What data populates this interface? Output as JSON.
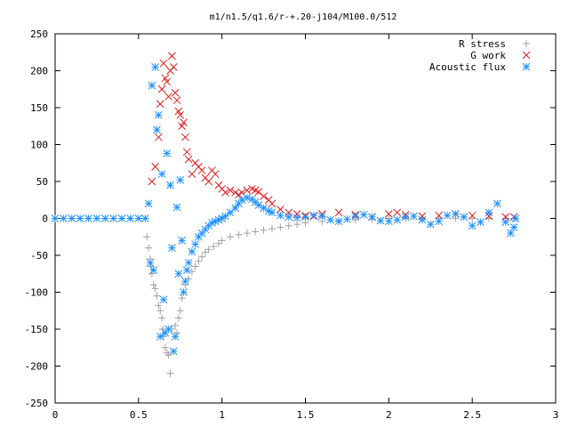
{
  "chart_data": {
    "type": "scatter",
    "title": "m1/n1.5/q1.6/r-+.20-j104/M100.0/512",
    "xlabel": "",
    "ylabel": "",
    "xlim": [
      0,
      3
    ],
    "ylim": [
      -250,
      250
    ],
    "x_ticks": [
      0,
      0.5,
      1,
      1.5,
      2,
      2.5,
      3
    ],
    "x_tick_labels": [
      "0",
      "0.5",
      "1",
      "1.5",
      "2",
      "2.5",
      "3"
    ],
    "y_ticks": [
      -250,
      -200,
      -150,
      -100,
      -50,
      0,
      50,
      100,
      150,
      200,
      250
    ],
    "y_tick_labels": [
      "-250",
      "-200",
      "-150",
      "-100",
      "-50",
      "0",
      "50",
      "100",
      "150",
      "200",
      "250"
    ],
    "grid": false,
    "legend_position": "top-right",
    "series": [
      {
        "name": "R stress",
        "marker": "plus",
        "color": "#a0a0a0",
        "points": [
          [
            0.55,
            -25
          ],
          [
            0.56,
            -40
          ],
          [
            0.57,
            -55
          ],
          [
            0.575,
            -65
          ],
          [
            0.58,
            -75
          ],
          [
            0.59,
            -90
          ],
          [
            0.6,
            -95
          ],
          [
            0.61,
            -105
          ],
          [
            0.62,
            -118
          ],
          [
            0.63,
            -125
          ],
          [
            0.64,
            -135
          ],
          [
            0.645,
            -150
          ],
          [
            0.65,
            -160
          ],
          [
            0.66,
            -175
          ],
          [
            0.67,
            -182
          ],
          [
            0.68,
            -185
          ],
          [
            0.69,
            -210
          ],
          [
            0.7,
            -150
          ],
          [
            0.72,
            -145
          ],
          [
            0.73,
            -155
          ],
          [
            0.74,
            -135
          ],
          [
            0.75,
            -125
          ],
          [
            0.76,
            -108
          ],
          [
            0.77,
            -100
          ],
          [
            0.78,
            -90
          ],
          [
            0.8,
            -82
          ],
          [
            0.82,
            -72
          ],
          [
            0.84,
            -65
          ],
          [
            0.86,
            -58
          ],
          [
            0.88,
            -52
          ],
          [
            0.9,
            -46
          ],
          [
            0.92,
            -42
          ],
          [
            0.95,
            -38
          ],
          [
            0.98,
            -34
          ],
          [
            1.0,
            -30
          ],
          [
            1.05,
            -25
          ],
          [
            1.1,
            -22
          ],
          [
            1.15,
            -20
          ],
          [
            1.2,
            -18
          ],
          [
            1.25,
            -16
          ],
          [
            1.3,
            -14
          ],
          [
            1.35,
            -12
          ],
          [
            1.4,
            -10
          ],
          [
            1.45,
            -8
          ],
          [
            1.5,
            -6
          ],
          [
            1.6,
            -4
          ],
          [
            1.7,
            -3
          ],
          [
            1.8,
            -2
          ],
          [
            1.9,
            -1
          ],
          [
            2.0,
            0
          ],
          [
            2.1,
            0
          ],
          [
            2.2,
            0
          ],
          [
            2.3,
            0
          ],
          [
            2.4,
            0
          ],
          [
            2.5,
            0
          ],
          [
            2.6,
            0
          ],
          [
            2.7,
            0
          ],
          [
            2.75,
            0
          ]
        ]
      },
      {
        "name": "G work",
        "marker": "cross",
        "color": "#e41a1c",
        "points": [
          [
            0.58,
            50
          ],
          [
            0.6,
            70
          ],
          [
            0.62,
            110
          ],
          [
            0.63,
            155
          ],
          [
            0.64,
            175
          ],
          [
            0.65,
            210
          ],
          [
            0.66,
            190
          ],
          [
            0.67,
            185
          ],
          [
            0.68,
            165
          ],
          [
            0.69,
            200
          ],
          [
            0.7,
            220
          ],
          [
            0.71,
            205
          ],
          [
            0.72,
            170
          ],
          [
            0.73,
            160
          ],
          [
            0.74,
            145
          ],
          [
            0.75,
            140
          ],
          [
            0.76,
            125
          ],
          [
            0.77,
            130
          ],
          [
            0.78,
            110
          ],
          [
            0.79,
            90
          ],
          [
            0.8,
            80
          ],
          [
            0.82,
            60
          ],
          [
            0.84,
            75
          ],
          [
            0.86,
            70
          ],
          [
            0.88,
            65
          ],
          [
            0.9,
            55
          ],
          [
            0.92,
            50
          ],
          [
            0.94,
            65
          ],
          [
            0.96,
            60
          ],
          [
            0.98,
            45
          ],
          [
            1.0,
            40
          ],
          [
            1.02,
            35
          ],
          [
            1.05,
            38
          ],
          [
            1.08,
            35
          ],
          [
            1.1,
            32
          ],
          [
            1.12,
            35
          ],
          [
            1.15,
            38
          ],
          [
            1.18,
            40
          ],
          [
            1.2,
            38
          ],
          [
            1.22,
            36
          ],
          [
            1.25,
            30
          ],
          [
            1.28,
            25
          ],
          [
            1.3,
            20
          ],
          [
            1.35,
            12
          ],
          [
            1.4,
            8
          ],
          [
            1.45,
            6
          ],
          [
            1.5,
            4
          ],
          [
            1.55,
            3
          ],
          [
            1.6,
            6
          ],
          [
            1.7,
            8
          ],
          [
            1.8,
            5
          ],
          [
            1.9,
            2
          ],
          [
            2.0,
            6
          ],
          [
            2.05,
            8
          ],
          [
            2.1,
            5
          ],
          [
            2.2,
            3
          ],
          [
            2.3,
            4
          ],
          [
            2.4,
            6
          ],
          [
            2.5,
            4
          ],
          [
            2.6,
            3
          ],
          [
            2.7,
            2
          ],
          [
            2.75,
            2
          ]
        ]
      },
      {
        "name": "Acoustic flux",
        "marker": "star",
        "color": "#1e90ff",
        "points": [
          [
            0.0,
            0
          ],
          [
            0.05,
            0
          ],
          [
            0.1,
            0
          ],
          [
            0.15,
            0
          ],
          [
            0.2,
            0
          ],
          [
            0.25,
            0
          ],
          [
            0.3,
            0
          ],
          [
            0.35,
            0
          ],
          [
            0.4,
            0
          ],
          [
            0.45,
            0
          ],
          [
            0.5,
            0
          ],
          [
            0.54,
            0
          ],
          [
            0.56,
            20
          ],
          [
            0.57,
            -60
          ],
          [
            0.58,
            180
          ],
          [
            0.59,
            -70
          ],
          [
            0.6,
            205
          ],
          [
            0.61,
            120
          ],
          [
            0.62,
            140
          ],
          [
            0.63,
            -160
          ],
          [
            0.64,
            60
          ],
          [
            0.65,
            -110
          ],
          [
            0.66,
            -155
          ],
          [
            0.67,
            88
          ],
          [
            0.68,
            -150
          ],
          [
            0.69,
            45
          ],
          [
            0.7,
            -40
          ],
          [
            0.71,
            -180
          ],
          [
            0.72,
            -160
          ],
          [
            0.73,
            15
          ],
          [
            0.74,
            -75
          ],
          [
            0.75,
            52
          ],
          [
            0.76,
            -30
          ],
          [
            0.77,
            -100
          ],
          [
            0.78,
            -85
          ],
          [
            0.79,
            -70
          ],
          [
            0.8,
            -60
          ],
          [
            0.82,
            -45
          ],
          [
            0.84,
            -35
          ],
          [
            0.86,
            -25
          ],
          [
            0.88,
            -20
          ],
          [
            0.9,
            -15
          ],
          [
            0.92,
            -10
          ],
          [
            0.94,
            -6
          ],
          [
            0.96,
            -4
          ],
          [
            0.98,
            -2
          ],
          [
            1.0,
            0
          ],
          [
            1.02,
            3
          ],
          [
            1.05,
            8
          ],
          [
            1.08,
            14
          ],
          [
            1.1,
            20
          ],
          [
            1.12,
            25
          ],
          [
            1.15,
            28
          ],
          [
            1.18,
            26
          ],
          [
            1.2,
            22
          ],
          [
            1.22,
            18
          ],
          [
            1.25,
            14
          ],
          [
            1.28,
            10
          ],
          [
            1.3,
            8
          ],
          [
            1.35,
            4
          ],
          [
            1.4,
            2
          ],
          [
            1.45,
            1
          ],
          [
            1.5,
            2
          ],
          [
            1.55,
            4
          ],
          [
            1.6,
            3
          ],
          [
            1.65,
            -2
          ],
          [
            1.7,
            -4
          ],
          [
            1.75,
            -1
          ],
          [
            1.8,
            3
          ],
          [
            1.85,
            5
          ],
          [
            1.9,
            2
          ],
          [
            1.95,
            -3
          ],
          [
            2.0,
            -4
          ],
          [
            2.05,
            -2
          ],
          [
            2.1,
            2
          ],
          [
            2.15,
            3
          ],
          [
            2.2,
            -2
          ],
          [
            2.25,
            -8
          ],
          [
            2.3,
            -4
          ],
          [
            2.35,
            4
          ],
          [
            2.4,
            6
          ],
          [
            2.45,
            2
          ],
          [
            2.5,
            -10
          ],
          [
            2.55,
            -5
          ],
          [
            2.6,
            8
          ],
          [
            2.65,
            20
          ],
          [
            2.7,
            -5
          ],
          [
            2.73,
            -20
          ],
          [
            2.75,
            -12
          ],
          [
            2.76,
            0
          ]
        ]
      }
    ]
  }
}
